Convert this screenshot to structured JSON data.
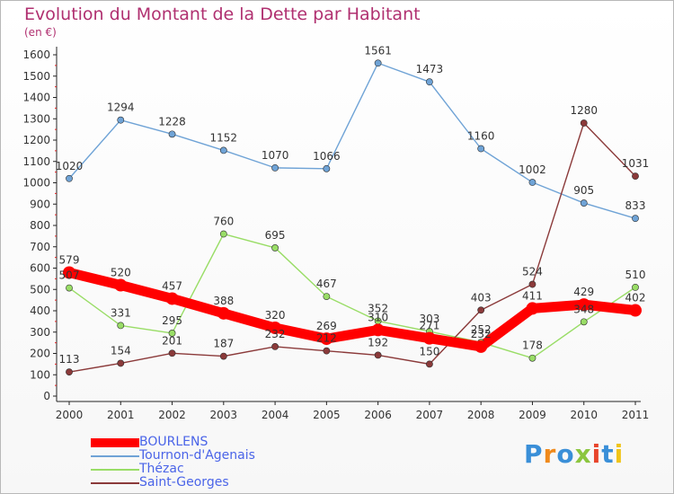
{
  "title": "Evolution du Montant de la Dette par Habitant",
  "unit_label": "(en €)",
  "logo_text": "Proxiti",
  "chart_data": {
    "type": "line",
    "title": "Evolution du Montant de la Dette par Habitant",
    "ylabel": "(en €)",
    "xlabel": "",
    "x": [
      "2000",
      "2001",
      "2002",
      "2003",
      "2004",
      "2005",
      "2006",
      "2007",
      "2008",
      "2009",
      "2010",
      "2011"
    ],
    "ylim": [
      0,
      1600
    ],
    "yticks": [
      0,
      100,
      200,
      300,
      400,
      500,
      600,
      700,
      800,
      900,
      1000,
      1100,
      1200,
      1300,
      1400,
      1500,
      1600
    ],
    "grid": false,
    "legend_position": "bottom-left",
    "series": [
      {
        "name": "BOURLENS",
        "color": "#ff0000",
        "values": [
          579,
          520,
          457,
          388,
          320,
          269,
          310,
          271,
          232,
          411,
          429,
          402
        ]
      },
      {
        "name": "Tournon-d'Agenais",
        "color": "#6fa3d6",
        "values": [
          1020,
          1294,
          1228,
          1152,
          1070,
          1066,
          1561,
          1473,
          1160,
          1002,
          905,
          833
        ]
      },
      {
        "name": "Thézac",
        "color": "#99dd66",
        "values": [
          507,
          331,
          295,
          760,
          695,
          467,
          352,
          303,
          252,
          178,
          348,
          510
        ]
      },
      {
        "name": "Saint-Georges",
        "color": "#8b3a3a",
        "values": [
          113,
          154,
          201,
          187,
          232,
          212,
          192,
          150,
          403,
          524,
          1280,
          1031
        ]
      }
    ]
  }
}
